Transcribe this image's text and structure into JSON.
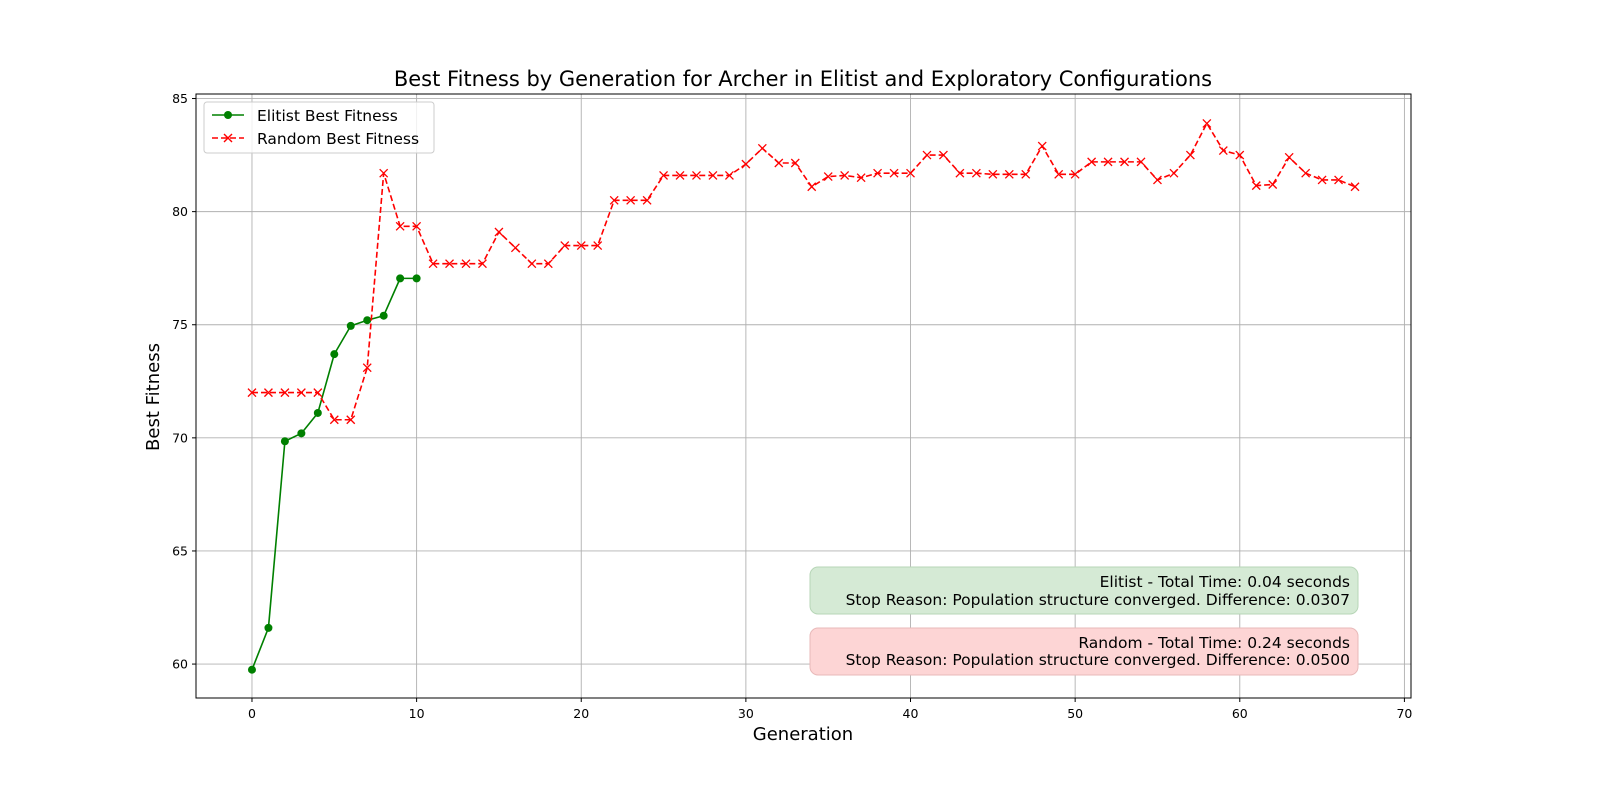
{
  "chart_data": {
    "type": "line",
    "title": "Best Fitness by Generation for Archer in Elitist and Exploratory Configurations",
    "xlabel": "Generation",
    "ylabel": "Best Fitness",
    "xlim": [
      -3.4,
      70.4
    ],
    "ylim": [
      58.5,
      85.2
    ],
    "xticks": [
      0,
      10,
      20,
      30,
      40,
      50,
      60,
      70
    ],
    "yticks": [
      60,
      65,
      70,
      75,
      80,
      85
    ],
    "grid": true,
    "legend_position": "top-left",
    "series": [
      {
        "name": "Elitist Best Fitness",
        "color": "#008000",
        "linestyle": "solid",
        "marker": "circle",
        "x": [
          0,
          1,
          2,
          3,
          4,
          5,
          6,
          7,
          8,
          9,
          10
        ],
        "y": [
          59.75,
          61.6,
          69.85,
          70.2,
          71.1,
          73.7,
          74.95,
          75.2,
          75.4,
          77.05,
          77.05
        ]
      },
      {
        "name": "Random Best Fitness",
        "color": "#ff0000",
        "linestyle": "dashed",
        "marker": "x",
        "x": [
          0,
          1,
          2,
          3,
          4,
          5,
          6,
          7,
          8,
          9,
          10,
          11,
          12,
          13,
          14,
          15,
          16,
          17,
          18,
          19,
          20,
          21,
          22,
          23,
          24,
          25,
          26,
          27,
          28,
          29,
          30,
          31,
          32,
          33,
          34,
          35,
          36,
          37,
          38,
          39,
          40,
          41,
          42,
          43,
          44,
          45,
          46,
          47,
          48,
          49,
          50,
          51,
          52,
          53,
          54,
          55,
          56,
          57,
          58,
          59,
          60,
          61,
          62,
          63,
          64,
          65,
          66,
          67
        ],
        "y": [
          72.0,
          72.0,
          72.0,
          72.0,
          72.0,
          70.8,
          70.8,
          73.1,
          81.7,
          79.35,
          79.35,
          77.7,
          77.7,
          77.7,
          77.7,
          79.1,
          78.4,
          77.7,
          77.7,
          78.5,
          78.5,
          78.5,
          80.5,
          80.5,
          80.5,
          81.6,
          81.6,
          81.6,
          81.6,
          81.6,
          82.1,
          82.8,
          82.15,
          82.15,
          81.1,
          81.55,
          81.6,
          81.5,
          81.7,
          81.7,
          81.7,
          82.5,
          82.5,
          81.7,
          81.7,
          81.65,
          81.65,
          81.65,
          82.9,
          81.65,
          81.65,
          82.2,
          82.2,
          82.2,
          82.2,
          81.4,
          81.7,
          82.5,
          83.9,
          82.7,
          82.5,
          81.15,
          81.2,
          82.4,
          81.7,
          81.4,
          81.4,
          81.1
        ]
      }
    ],
    "annotations": [
      {
        "name": "elitist-summary",
        "lines": [
          "Elitist - Total Time: 0.04 seconds",
          "Stop Reason: Population structure converged. Difference: 0.0307"
        ],
        "box_color": "#d5ead5",
        "border_color": "#b7d6b7"
      },
      {
        "name": "random-summary",
        "lines": [
          "Random - Total Time: 0.24 seconds",
          "Stop Reason: Population structure converged. Difference: 0.0500"
        ],
        "box_color": "#fdd5d5",
        "border_color": "#e8b9b9"
      }
    ]
  }
}
